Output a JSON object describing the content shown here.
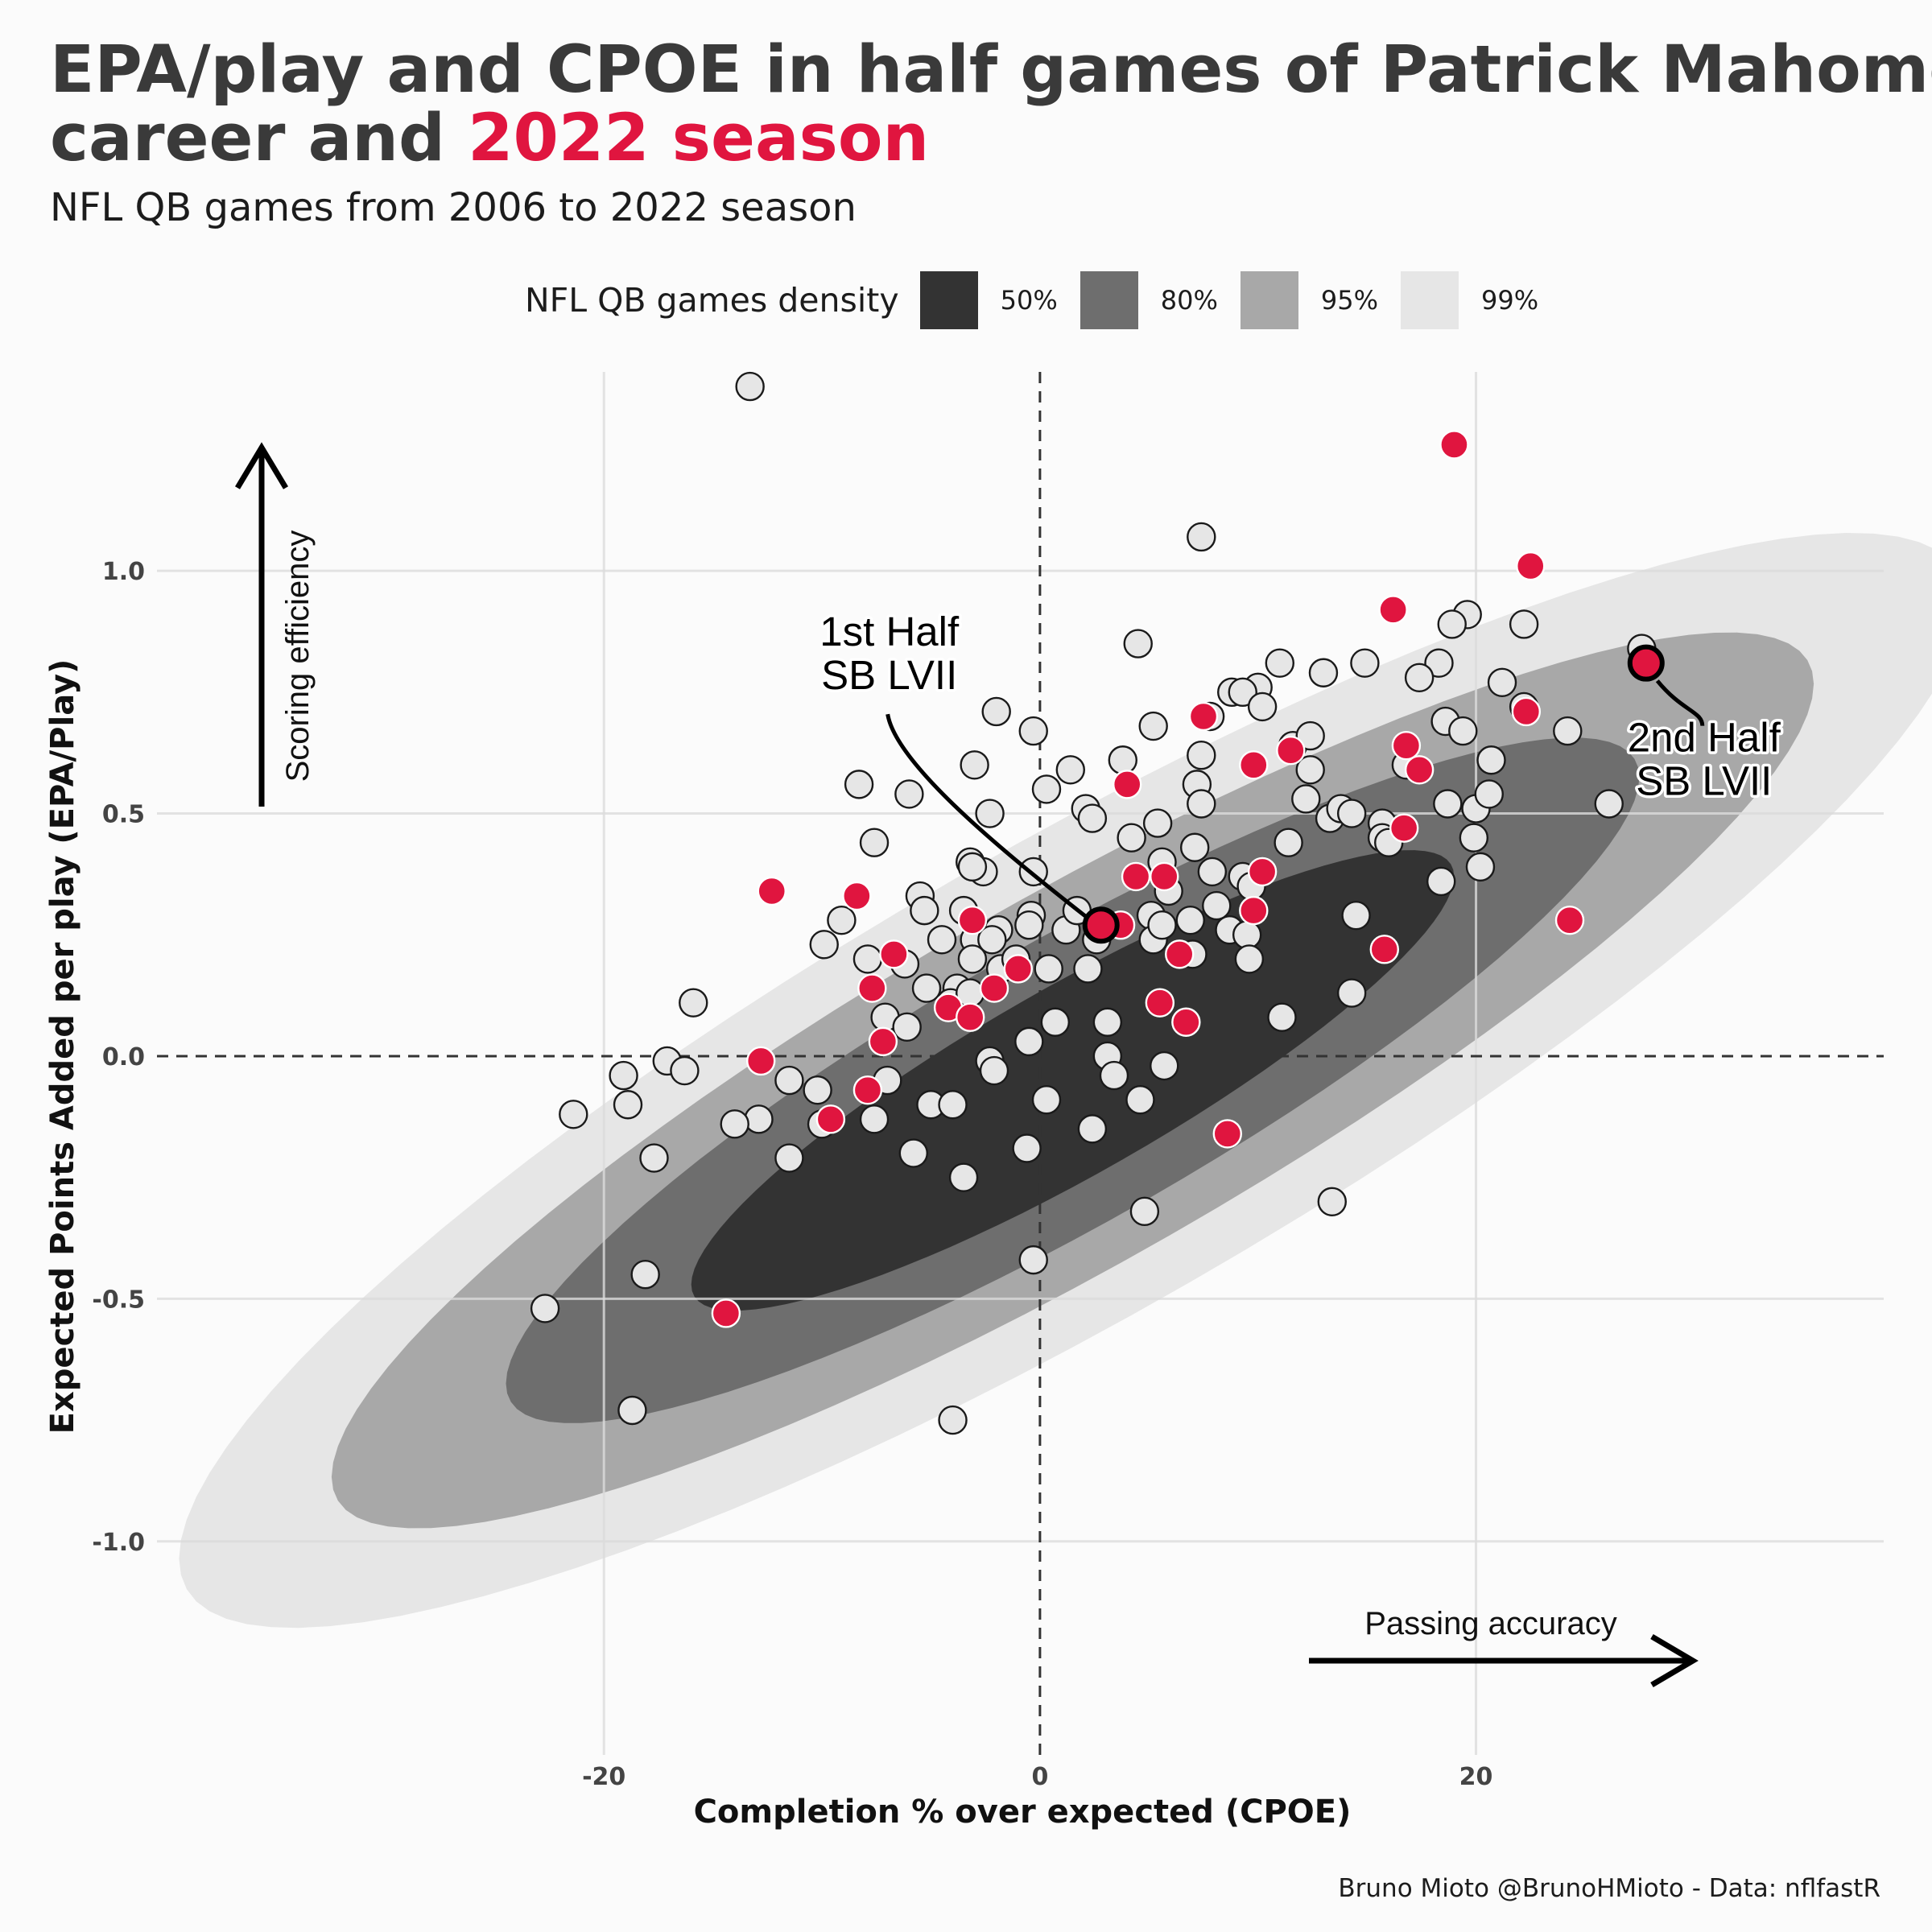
{
  "header": {
    "title_line1": "EPA/play and CPOE in half games of Patrick Mahomes",
    "title_line2_start": "career and ",
    "title_line2_highlight": "2022 season",
    "subtitle": "NFL QB games from 2006 to 2022 season"
  },
  "legend": {
    "title": "NFL QB games density",
    "items": [
      {
        "label": "50%",
        "color": "#333333"
      },
      {
        "label": "80%",
        "color": "#6e6e6e"
      },
      {
        "label": "95%",
        "color": "#a8a8a8"
      },
      {
        "label": "99%",
        "color": "#e6e6e6"
      }
    ]
  },
  "caption": "Bruno Mioto @BrunoHMioto - Data: nflfastR",
  "colors": {
    "season_2022": "#e0153f",
    "career": "#e6e6e6",
    "title": "#3a3a3a",
    "background": "#fbfbfb"
  },
  "chart_data": {
    "type": "scatter",
    "xlabel": "Completion % over expected (CPOE)",
    "ylabel": "Expected Points Added per play (EPA/Play)",
    "xlim": [
      -40.5,
      38.7
    ],
    "ylim": [
      -1.44,
      1.41
    ],
    "x_ticks": [
      {
        "value": -20,
        "label": "-20"
      },
      {
        "value": 0,
        "label": "0"
      },
      {
        "value": 20,
        "label": "20"
      }
    ],
    "y_ticks": [
      {
        "value": -1,
        "label": "-1.0"
      },
      {
        "value": -0.5,
        "label": "-0.5"
      },
      {
        "value": 0,
        "label": "0.0"
      },
      {
        "value": 0.5,
        "label": "0.5"
      },
      {
        "value": 1,
        "label": "1.0"
      }
    ],
    "reference_lines": {
      "x": 0,
      "y": 0
    },
    "grid": true,
    "density_contours": [
      {
        "level": "99%",
        "center": [
          1.5,
          -0.05
        ],
        "major": 41,
        "minor": 0.55,
        "angle_deg": 31,
        "color": "#e6e6e6"
      },
      {
        "level": "95%",
        "center": [
          1.5,
          -0.05
        ],
        "major": 34,
        "minor": 0.43,
        "angle_deg": 31,
        "color": "#a8a8a8"
      },
      {
        "level": "80%",
        "center": [
          1.5,
          -0.05
        ],
        "major": 26,
        "minor": 0.33,
        "angle_deg": 31,
        "color": "#6e6e6e"
      },
      {
        "level": "50%",
        "center": [
          1.5,
          -0.05
        ],
        "major": 17.5,
        "minor": 0.22,
        "angle_deg": 31,
        "color": "#333333"
      }
    ],
    "series": [
      {
        "name": "career",
        "color": "#e6e6e6",
        "points": [
          [
            -13.3,
            1.38
          ],
          [
            7.4,
            1.07
          ],
          [
            19.6,
            0.91
          ],
          [
            18.9,
            0.89
          ],
          [
            22.2,
            0.89
          ],
          [
            27.6,
            0.84
          ],
          [
            4.5,
            0.85
          ],
          [
            11.0,
            0.81
          ],
          [
            13.0,
            0.79
          ],
          [
            14.9,
            0.81
          ],
          [
            18.3,
            0.81
          ],
          [
            17.4,
            0.78
          ],
          [
            10.0,
            0.76
          ],
          [
            7.8,
            0.7
          ],
          [
            8.8,
            0.75
          ],
          [
            9.3,
            0.75
          ],
          [
            10.2,
            0.72
          ],
          [
            -2.0,
            0.71
          ],
          [
            21.2,
            0.77
          ],
          [
            22.2,
            0.72
          ],
          [
            24.2,
            0.67
          ],
          [
            20.7,
            0.61
          ],
          [
            18.6,
            0.69
          ],
          [
            19.4,
            0.67
          ],
          [
            26.1,
            0.52
          ],
          [
            -0.3,
            0.67
          ],
          [
            -3.0,
            0.6
          ],
          [
            1.4,
            0.59
          ],
          [
            5.2,
            0.68
          ],
          [
            3.8,
            0.61
          ],
          [
            11.6,
            0.64
          ],
          [
            12.4,
            0.66
          ],
          [
            12.4,
            0.59
          ],
          [
            16.8,
            0.6
          ],
          [
            -8.3,
            0.56
          ],
          [
            -6.0,
            0.54
          ],
          [
            0.3,
            0.55
          ],
          [
            2.1,
            0.51
          ],
          [
            2.4,
            0.49
          ],
          [
            5.4,
            0.48
          ],
          [
            7.2,
            0.56
          ],
          [
            7.4,
            0.52
          ],
          [
            7.4,
            0.62
          ],
          [
            12.2,
            0.53
          ],
          [
            13.3,
            0.49
          ],
          [
            13.8,
            0.51
          ],
          [
            14.3,
            0.5
          ],
          [
            15.7,
            0.48
          ],
          [
            15.7,
            0.45
          ],
          [
            18.7,
            0.52
          ],
          [
            20.0,
            0.51
          ],
          [
            19.9,
            0.45
          ],
          [
            20.6,
            0.54
          ],
          [
            -2.3,
            0.5
          ],
          [
            -7.6,
            0.44
          ],
          [
            4.2,
            0.45
          ],
          [
            5.6,
            0.4
          ],
          [
            7.1,
            0.43
          ],
          [
            7.9,
            0.38
          ],
          [
            9.3,
            0.37
          ],
          [
            9.7,
            0.35
          ],
          [
            11.4,
            0.44
          ],
          [
            16.0,
            0.44
          ],
          [
            18.4,
            0.36
          ],
          [
            20.2,
            0.39
          ],
          [
            -2.6,
            0.38
          ],
          [
            -3.2,
            0.4
          ],
          [
            -3.1,
            0.39
          ],
          [
            -0.3,
            0.38
          ],
          [
            -3.5,
            0.3
          ],
          [
            -5.5,
            0.33
          ],
          [
            -0.4,
            0.29
          ],
          [
            -9.1,
            0.28
          ],
          [
            -9.9,
            0.23
          ],
          [
            -5.3,
            0.3
          ],
          [
            -4.5,
            0.24
          ],
          [
            -3.0,
            0.24
          ],
          [
            -1.9,
            0.26
          ],
          [
            -2.2,
            0.24
          ],
          [
            -0.5,
            0.27
          ],
          [
            1.2,
            0.26
          ],
          [
            1.7,
            0.3
          ],
          [
            2.6,
            0.24
          ],
          [
            5.1,
            0.29
          ],
          [
            5.2,
            0.24
          ],
          [
            5.6,
            0.27
          ],
          [
            5.9,
            0.34
          ],
          [
            6.9,
            0.28
          ],
          [
            8.1,
            0.31
          ],
          [
            8.7,
            0.26
          ],
          [
            7.0,
            0.21
          ],
          [
            9.5,
            0.25
          ],
          [
            9.6,
            0.2
          ],
          [
            14.5,
            0.29
          ],
          [
            -7.9,
            0.2
          ],
          [
            -6.2,
            0.19
          ],
          [
            -3.8,
            0.14
          ],
          [
            -3.1,
            0.2
          ],
          [
            -1.8,
            0.18
          ],
          [
            -1.1,
            0.2
          ],
          [
            0.4,
            0.18
          ],
          [
            2.2,
            0.18
          ],
          [
            -5.2,
            0.14
          ],
          [
            -4.1,
            0.11
          ],
          [
            -7.1,
            0.08
          ],
          [
            -6.1,
            0.06
          ],
          [
            -3.2,
            0.13
          ],
          [
            0.7,
            0.07
          ],
          [
            3.1,
            0.07
          ],
          [
            11.1,
            0.08
          ],
          [
            14.3,
            0.13
          ],
          [
            -15.9,
            0.11
          ],
          [
            -7.0,
            -0.05
          ],
          [
            -11.5,
            -0.05
          ],
          [
            -10.2,
            -0.07
          ],
          [
            -17.1,
            -0.01
          ],
          [
            -16.3,
            -0.03
          ],
          [
            -19.1,
            -0.04
          ],
          [
            -18.9,
            -0.1
          ],
          [
            -12.9,
            -0.13
          ],
          [
            -14.0,
            -0.14
          ],
          [
            -10.0,
            -0.14
          ],
          [
            -7.6,
            -0.13
          ],
          [
            -5.0,
            -0.1
          ],
          [
            -4.0,
            -0.1
          ],
          [
            -2.3,
            -0.01
          ],
          [
            -2.1,
            -0.03
          ],
          [
            -0.5,
            0.03
          ],
          [
            3.1,
            0.0
          ],
          [
            3.4,
            -0.04
          ],
          [
            4.6,
            -0.09
          ],
          [
            5.7,
            -0.02
          ],
          [
            0.3,
            -0.09
          ],
          [
            2.4,
            -0.15
          ],
          [
            -21.4,
            -0.12
          ],
          [
            -17.7,
            -0.21
          ],
          [
            -11.5,
            -0.21
          ],
          [
            -5.8,
            -0.2
          ],
          [
            -0.6,
            -0.19
          ],
          [
            -3.5,
            -0.25
          ],
          [
            13.4,
            -0.3
          ],
          [
            4.8,
            -0.32
          ],
          [
            -18.1,
            -0.45
          ],
          [
            -22.7,
            -0.52
          ],
          [
            -0.3,
            -0.42
          ],
          [
            -18.7,
            -0.73
          ],
          [
            -4.0,
            -0.75
          ]
        ]
      },
      {
        "name": "2022 season",
        "color": "#e0153f",
        "points": [
          [
            19.0,
            1.26
          ],
          [
            22.5,
            1.01
          ],
          [
            16.2,
            0.92
          ],
          [
            7.5,
            0.7
          ],
          [
            9.8,
            0.6
          ],
          [
            11.5,
            0.63
          ],
          [
            16.8,
            0.64
          ],
          [
            17.4,
            0.59
          ],
          [
            22.3,
            0.71
          ],
          [
            4.0,
            0.56
          ],
          [
            16.7,
            0.47
          ],
          [
            -12.3,
            0.34
          ],
          [
            -8.4,
            0.33
          ],
          [
            4.4,
            0.37
          ],
          [
            5.7,
            0.37
          ],
          [
            10.2,
            0.38
          ],
          [
            9.8,
            0.3
          ],
          [
            -3.1,
            0.28
          ],
          [
            3.7,
            0.27
          ],
          [
            24.3,
            0.28
          ],
          [
            15.8,
            0.22
          ],
          [
            -6.7,
            0.21
          ],
          [
            6.4,
            0.21
          ],
          [
            -1.0,
            0.18
          ],
          [
            -7.7,
            0.14
          ],
          [
            -2.1,
            0.14
          ],
          [
            -4.2,
            0.1
          ],
          [
            -3.2,
            0.08
          ],
          [
            5.5,
            0.11
          ],
          [
            6.7,
            0.07
          ],
          [
            -7.2,
            0.03
          ],
          [
            -12.8,
            -0.01
          ],
          [
            -7.9,
            -0.07
          ],
          [
            -9.6,
            -0.13
          ],
          [
            8.6,
            -0.16
          ],
          [
            -14.4,
            -0.53
          ]
        ]
      }
    ],
    "annotations": [
      {
        "text_line1": "1st Half",
        "text_line2": "SB LVII",
        "x": 2.8,
        "y": 0.27
      },
      {
        "text_line1": "2nd Half",
        "text_line2": "SB LVII",
        "x": 27.8,
        "y": 0.81
      }
    ],
    "direction_labels": {
      "y": "Scoring efficiency",
      "x": "Passing accuracy"
    }
  }
}
